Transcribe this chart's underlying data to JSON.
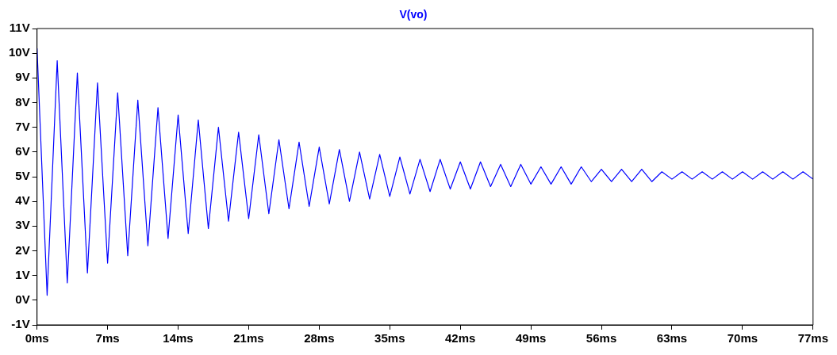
{
  "chart_data": {
    "type": "line",
    "xlim": [
      0,
      77
    ],
    "ylim": [
      -1,
      11
    ],
    "xticks": [
      {
        "value": 0,
        "label": "0ms"
      },
      {
        "value": 7,
        "label": "7ms"
      },
      {
        "value": 14,
        "label": "14ms"
      },
      {
        "value": 21,
        "label": "21ms"
      },
      {
        "value": 28,
        "label": "28ms"
      },
      {
        "value": 35,
        "label": "35ms"
      },
      {
        "value": 42,
        "label": "42ms"
      },
      {
        "value": 49,
        "label": "49ms"
      },
      {
        "value": 56,
        "label": "56ms"
      },
      {
        "value": 63,
        "label": "63ms"
      },
      {
        "value": 70,
        "label": "70ms"
      },
      {
        "value": 77,
        "label": "77ms"
      }
    ],
    "yticks": [
      {
        "value": -1,
        "label": "-1V"
      },
      {
        "value": 0,
        "label": "0V"
      },
      {
        "value": 1,
        "label": "1V"
      },
      {
        "value": 2,
        "label": "2V"
      },
      {
        "value": 3,
        "label": "3V"
      },
      {
        "value": 4,
        "label": "4V"
      },
      {
        "value": 5,
        "label": "5V"
      },
      {
        "value": 6,
        "label": "6V"
      },
      {
        "value": 7,
        "label": "7V"
      },
      {
        "value": 8,
        "label": "8V"
      },
      {
        "value": 9,
        "label": "9V"
      },
      {
        "value": 10,
        "label": "10V"
      },
      {
        "value": 11,
        "label": "11V"
      }
    ],
    "x": [
      0,
      1,
      2,
      3,
      4,
      5,
      6,
      7,
      8,
      9,
      10,
      11,
      12,
      13,
      14,
      15,
      16,
      17,
      18,
      19,
      20,
      21,
      22,
      23,
      24,
      25,
      26,
      27,
      28,
      29,
      30,
      31,
      32,
      33,
      34,
      35,
      36,
      37,
      38,
      39,
      40,
      41,
      42,
      43,
      44,
      45,
      46,
      47,
      48,
      49,
      50,
      51,
      52,
      53,
      54,
      55,
      56,
      57,
      58,
      59,
      60,
      61,
      62,
      63,
      64,
      65,
      66,
      67,
      68,
      69,
      70,
      71,
      72,
      73,
      74,
      75,
      76,
      77
    ],
    "series": [
      {
        "name": "V(vo)",
        "color": "#0000ff",
        "values": [
          10.2,
          0.2,
          9.7,
          0.7,
          9.2,
          1.1,
          8.8,
          1.5,
          8.4,
          1.8,
          8.1,
          2.2,
          7.8,
          2.5,
          7.5,
          2.7,
          7.3,
          2.9,
          7.0,
          3.2,
          6.8,
          3.3,
          6.7,
          3.5,
          6.5,
          3.7,
          6.4,
          3.8,
          6.2,
          3.9,
          6.1,
          4.0,
          6.0,
          4.1,
          5.9,
          4.2,
          5.8,
          4.3,
          5.7,
          4.4,
          5.7,
          4.5,
          5.6,
          4.5,
          5.6,
          4.6,
          5.5,
          4.6,
          5.5,
          4.7,
          5.4,
          4.7,
          5.4,
          4.7,
          5.4,
          4.8,
          5.3,
          4.8,
          5.3,
          4.8,
          5.3,
          4.8,
          5.2,
          4.9,
          5.2,
          4.9,
          5.2,
          4.9,
          5.2,
          4.9,
          5.2,
          4.9,
          5.2,
          4.9,
          5.2,
          4.9,
          5.2,
          4.9
        ]
      }
    ],
    "legend": "top",
    "marker": "none",
    "line_style": "solid",
    "grid": false
  }
}
